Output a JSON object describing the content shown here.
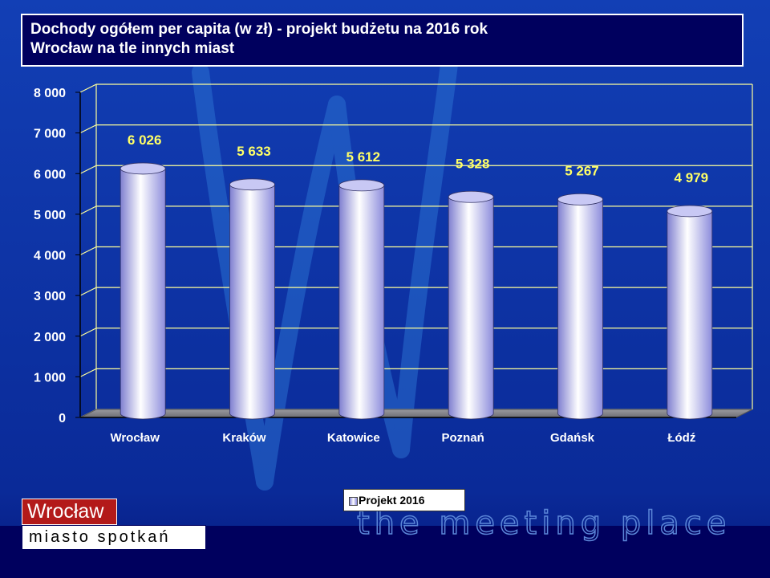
{
  "title": {
    "line1": "Dochody ogółem per capita (w zł) - projekt budżetu na 2016 rok",
    "line2": "Wrocław na tle innych miast"
  },
  "chart_data": {
    "type": "bar",
    "categories": [
      "Wrocław",
      "Kraków",
      "Katowice",
      "Poznań",
      "Gdańsk",
      "Łódź"
    ],
    "series": [
      {
        "name": "Projekt 2016",
        "values": [
          6026,
          5633,
          5612,
          5328,
          5267,
          4979
        ]
      }
    ],
    "data_labels": [
      "6 026",
      "5 633",
      "5 612",
      "5 328",
      "5 267",
      "4 979"
    ],
    "yticks": [
      "0",
      "1 000",
      "2 000",
      "3 000",
      "4 000",
      "5 000",
      "6 000",
      "7 000",
      "8 000"
    ],
    "ylim": [
      0,
      8000
    ],
    "grid": true,
    "legend_position": "bottom"
  },
  "legend": {
    "label": "Projekt 2016"
  },
  "branding": {
    "logo_top": "Wrocław",
    "logo_bottom": "miasto spotkań",
    "tagline": "the meeting place"
  },
  "colors": {
    "background": "#0d3db0",
    "title_bg": "#00005e",
    "bar": "#b8b8f0",
    "data_label": "#ffff66",
    "grid": "#ffff99"
  }
}
